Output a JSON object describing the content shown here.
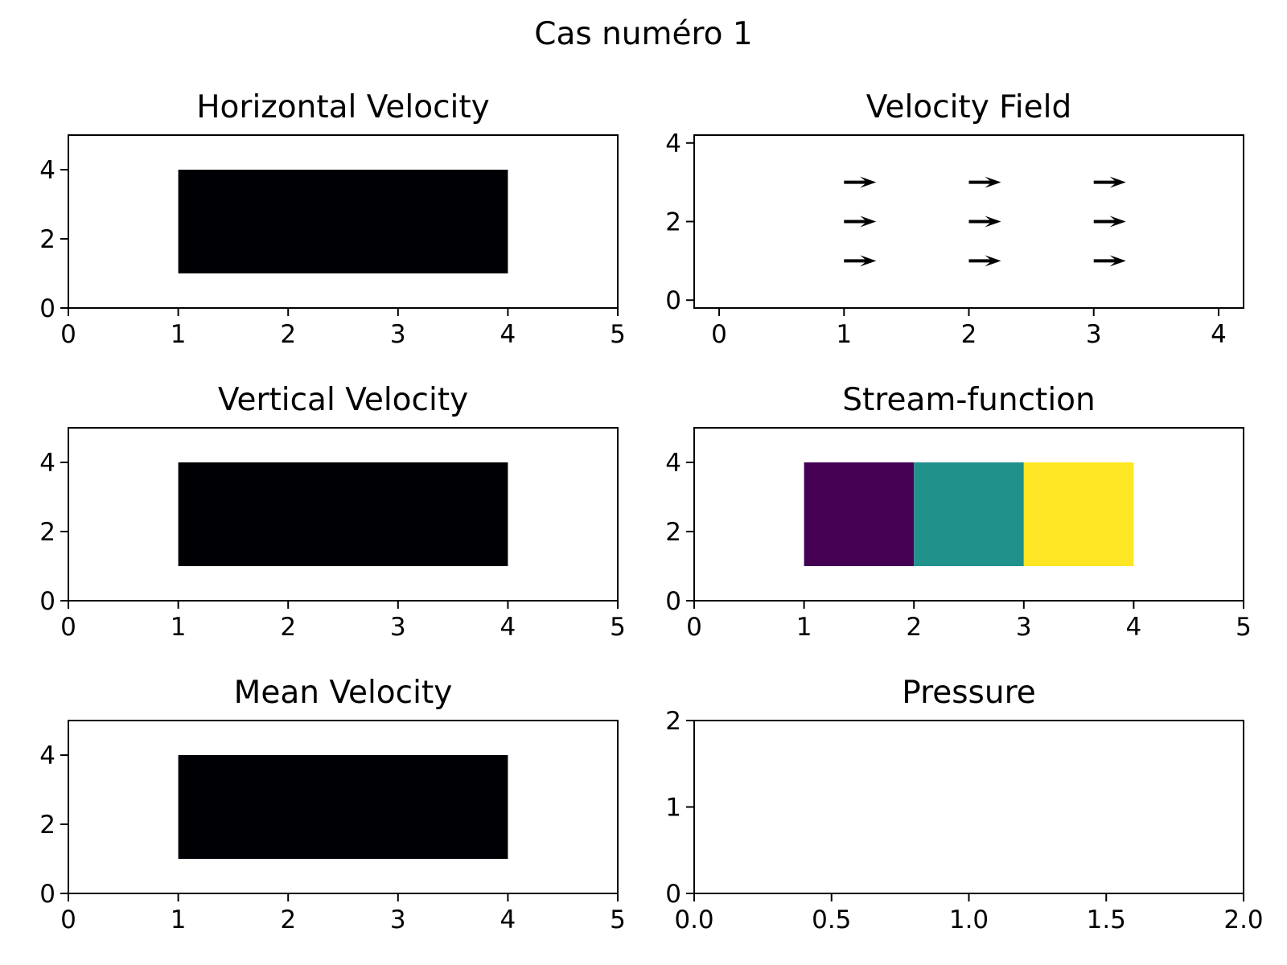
{
  "figure": {
    "suptitle": "Cas numéro 1"
  },
  "chart_data": [
    {
      "type": "heatmap",
      "title": "Horizontal Velocity",
      "xlim": [
        0,
        5
      ],
      "ylim": [
        0,
        5
      ],
      "xticks": [
        0,
        1,
        2,
        3,
        4,
        5
      ],
      "yticks": [
        0,
        2,
        4
      ],
      "regions": [
        {
          "x": [
            1,
            4
          ],
          "y": [
            1,
            4
          ],
          "color": "#000004"
        }
      ]
    },
    {
      "type": "quiver",
      "title": "Velocity Field",
      "xlim": [
        -0.2,
        4.2
      ],
      "ylim": [
        -0.2,
        4.2
      ],
      "xticks": [
        0,
        1,
        2,
        3,
        4
      ],
      "yticks": [
        0,
        2,
        4
      ],
      "arrow_color": "#000000",
      "arrows": [
        {
          "x": 1,
          "y": 1,
          "u": 1,
          "v": 0
        },
        {
          "x": 2,
          "y": 1,
          "u": 1,
          "v": 0
        },
        {
          "x": 3,
          "y": 1,
          "u": 1,
          "v": 0
        },
        {
          "x": 1,
          "y": 2,
          "u": 1,
          "v": 0
        },
        {
          "x": 2,
          "y": 2,
          "u": 1,
          "v": 0
        },
        {
          "x": 3,
          "y": 2,
          "u": 1,
          "v": 0
        },
        {
          "x": 1,
          "y": 3,
          "u": 1,
          "v": 0
        },
        {
          "x": 2,
          "y": 3,
          "u": 1,
          "v": 0
        },
        {
          "x": 3,
          "y": 3,
          "u": 1,
          "v": 0
        }
      ]
    },
    {
      "type": "heatmap",
      "title": "Vertical Velocity",
      "xlim": [
        0,
        5
      ],
      "ylim": [
        0,
        5
      ],
      "xticks": [
        0,
        1,
        2,
        3,
        4,
        5
      ],
      "yticks": [
        0,
        2,
        4
      ],
      "regions": [
        {
          "x": [
            1,
            4
          ],
          "y": [
            1,
            4
          ],
          "color": "#000004"
        }
      ]
    },
    {
      "type": "heatmap",
      "title": "Stream-function",
      "xlim": [
        0,
        5
      ],
      "ylim": [
        0,
        5
      ],
      "xticks": [
        0,
        1,
        2,
        3,
        4,
        5
      ],
      "yticks": [
        0,
        2,
        4
      ],
      "regions": [
        {
          "x": [
            1,
            2
          ],
          "y": [
            1,
            4
          ],
          "color": "#440154"
        },
        {
          "x": [
            2,
            3
          ],
          "y": [
            1,
            4
          ],
          "color": "#21918c"
        },
        {
          "x": [
            3,
            4
          ],
          "y": [
            1,
            4
          ],
          "color": "#fde725"
        }
      ]
    },
    {
      "type": "heatmap",
      "title": "Mean Velocity",
      "xlim": [
        0,
        5
      ],
      "ylim": [
        0,
        5
      ],
      "xticks": [
        0,
        1,
        2,
        3,
        4,
        5
      ],
      "yticks": [
        0,
        2,
        4
      ],
      "regions": [
        {
          "x": [
            1,
            4
          ],
          "y": [
            1,
            4
          ],
          "color": "#000004"
        }
      ]
    },
    {
      "type": "heatmap",
      "title": "Pressure",
      "xlim": [
        0,
        2
      ],
      "ylim": [
        0,
        2
      ],
      "xticks": [
        "0.0",
        "0.5",
        "1.0",
        "1.5",
        "2.0"
      ],
      "yticks": [
        0,
        1,
        2
      ],
      "regions": []
    }
  ]
}
